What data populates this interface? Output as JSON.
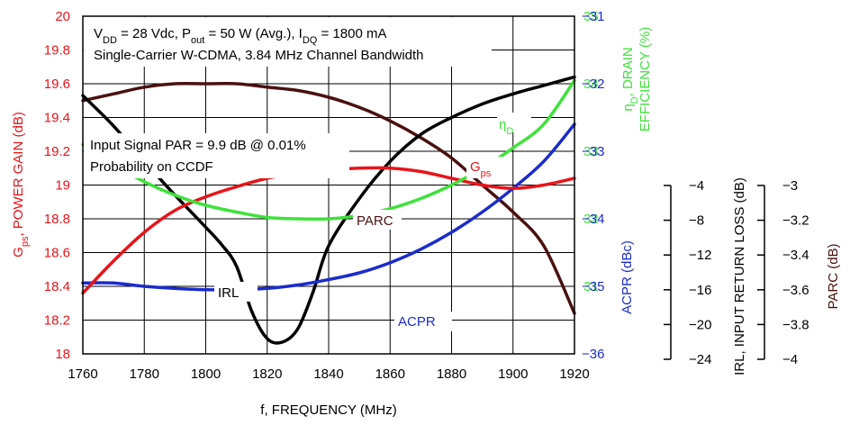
{
  "colors": {
    "gain": "#e8141a",
    "efficiency": "#3ee23a",
    "acpr": "#1a2ccc",
    "irl": "#000000",
    "parc": "#4a1010"
  },
  "chart_data": {
    "type": "line",
    "xlabel": "f, FREQUENCY (MHz)",
    "xlim": [
      1760,
      1920
    ],
    "x_ticks": [
      "1760",
      "1780",
      "1800",
      "1820",
      "1840",
      "1860",
      "1880",
      "1900",
      "1920"
    ],
    "grid": true,
    "axes": {
      "gain": {
        "label_main": "G",
        "label_sub": "ps",
        "label_rest": ", POWER GAIN (dB)",
        "range": [
          18,
          20
        ],
        "ticks": [
          "18",
          "18.2",
          "18.4",
          "18.6",
          "18.8",
          "19",
          "19.2",
          "19.4",
          "19.6",
          "19.8",
          "20"
        ]
      },
      "efficiency": {
        "label_line1": "η",
        "label_sub": "D",
        "label_line1_rest": ", DRAIN",
        "label_line2": "EFFICIENCY (%)",
        "range": [
          30,
          35
        ],
        "ticks": [
          "31",
          "32",
          "33",
          "34",
          "35"
        ]
      },
      "acpr": {
        "label": "ACPR (dBc)",
        "range": [
          -36,
          -31
        ],
        "ticks": [
          "-36",
          "-35",
          "-34",
          "-33",
          "-32",
          "-31"
        ]
      },
      "irl": {
        "label": "IRL, INPUT RETURN LOSS (dB)",
        "range": [
          -24,
          -4
        ],
        "ticks": [
          "-24",
          "-20",
          "-16",
          "-12",
          "-8",
          "-4"
        ]
      },
      "parc": {
        "label": "PARC (dB)",
        "range": [
          -4,
          -3
        ],
        "ticks": [
          "-4",
          "-3.8",
          "-3.6",
          "-3.4",
          "-3.2",
          "-3"
        ]
      }
    },
    "annotations": {
      "conditions_line1": "V_DD = 28 Vdc, P_out = 50 W (Avg.), I_DQ = 1800 mA",
      "conditions_line2": "Single-Carrier W-CDMA, 3.84 MHz Channel Bandwidth",
      "signal_line1": "Input Signal PAR = 9.9 dB @ 0.01%",
      "signal_line2": "Probability on CCDF"
    },
    "series": [
      {
        "name": "Gps",
        "label_main": "G",
        "label_sub": "ps",
        "axis": "gain",
        "x": [
          1760,
          1770,
          1780,
          1790,
          1800,
          1810,
          1820,
          1830,
          1840,
          1850,
          1860,
          1870,
          1880,
          1890,
          1900,
          1910,
          1920
        ],
        "y": [
          18.36,
          18.55,
          18.72,
          18.85,
          18.93,
          18.99,
          19.04,
          19.07,
          19.09,
          19.1,
          19.1,
          19.08,
          19.04,
          19.0,
          18.98,
          19.0,
          19.04
        ]
      },
      {
        "name": "ηD",
        "label_main": "η",
        "label_sub": "D",
        "axis": "efficiency",
        "x": [
          1760,
          1770,
          1780,
          1790,
          1800,
          1810,
          1820,
          1830,
          1840,
          1850,
          1860,
          1870,
          1880,
          1890,
          1900,
          1910,
          1920
        ],
        "y": [
          33.1,
          32.8,
          32.55,
          32.35,
          32.2,
          32.1,
          32.02,
          32.0,
          32.0,
          32.05,
          32.15,
          32.3,
          32.5,
          32.75,
          33.05,
          33.4,
          34.05
        ]
      },
      {
        "name": "ACPR",
        "label": "ACPR",
        "axis": "acpr",
        "x": [
          1760,
          1770,
          1780,
          1790,
          1800,
          1810,
          1820,
          1830,
          1840,
          1850,
          1860,
          1870,
          1880,
          1890,
          1900,
          1910,
          1920
        ],
        "y": [
          -34.95,
          -34.95,
          -35.0,
          -35.03,
          -35.05,
          -35.05,
          -35.03,
          -34.98,
          -34.9,
          -34.8,
          -34.65,
          -34.45,
          -34.2,
          -33.9,
          -33.55,
          -33.15,
          -32.6
        ]
      },
      {
        "name": "IRL",
        "label": "IRL",
        "axis": "irl",
        "x": [
          1760,
          1770,
          1780,
          1790,
          1800,
          1805,
          1810,
          1815,
          1820,
          1825,
          1830,
          1835,
          1840,
          1850,
          1860,
          1870,
          1880,
          1890,
          1900,
          1910,
          1920
        ],
        "y": [
          -8.7,
          -10.5,
          -12.6,
          -14.6,
          -16.5,
          -17.5,
          -18.8,
          -21.5,
          -23.1,
          -23.3,
          -22.5,
          -20.3,
          -17.6,
          -14.8,
          -12.6,
          -11.0,
          -10.0,
          -9.2,
          -8.6,
          -8.1,
          -7.6
        ]
      },
      {
        "name": "PARC",
        "label": "PARC",
        "axis": "parc",
        "x": [
          1760,
          1770,
          1780,
          1790,
          1800,
          1810,
          1820,
          1830,
          1840,
          1850,
          1860,
          1870,
          1880,
          1890,
          1900,
          1910,
          1920
        ],
        "y": [
          -3.25,
          -3.23,
          -3.21,
          -3.2,
          -3.2,
          -3.2,
          -3.21,
          -3.22,
          -3.24,
          -3.27,
          -3.31,
          -3.36,
          -3.42,
          -3.5,
          -3.58,
          -3.68,
          -3.88
        ]
      }
    ]
  }
}
